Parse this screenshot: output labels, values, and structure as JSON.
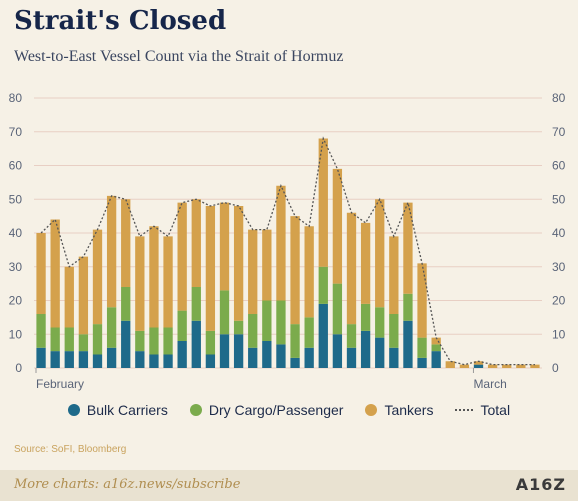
{
  "header": {
    "title": "Strait's Closed",
    "subtitle": "West-to-East Vessel Count via the Strait of Hormuz"
  },
  "legend": {
    "bulk": "Bulk Carriers",
    "dry": "Dry Cargo/Passenger",
    "tankers": "Tankers",
    "total": "Total"
  },
  "source": "Source: SoFI, Bloomberg",
  "footer": {
    "text": "More charts: a16z.news/subscribe",
    "logo": "A16Z"
  },
  "colors": {
    "bulk": "#1e6a8a",
    "dry": "#7bab4c",
    "tankers": "#d4a14c",
    "total": "#555555",
    "grid": "#e8cfc4",
    "axis_text": "#5a6478"
  },
  "chart_data": {
    "type": "bar",
    "stacked": true,
    "ylim": [
      0,
      80
    ],
    "yticks": [
      0,
      10,
      20,
      30,
      40,
      50,
      60,
      70,
      80
    ],
    "y_axis_both_sides": true,
    "grid": true,
    "legend_position": "bottom",
    "x_tick_labels": [
      {
        "label": "February",
        "index": 0
      },
      {
        "label": "March",
        "index": 31
      }
    ],
    "series": [
      {
        "name": "Bulk Carriers",
        "values": [
          6,
          5,
          5,
          5,
          4,
          6,
          14,
          5,
          4,
          4,
          8,
          14,
          4,
          10,
          10,
          6,
          8,
          7,
          3,
          6,
          19,
          10,
          6,
          11,
          9,
          6,
          14,
          3,
          5,
          0,
          0,
          1,
          0,
          0,
          0,
          0
        ]
      },
      {
        "name": "Dry Cargo/Passenger",
        "values": [
          10,
          7,
          7,
          5,
          9,
          12,
          10,
          6,
          8,
          8,
          9,
          10,
          7,
          13,
          4,
          10,
          12,
          13,
          10,
          9,
          11,
          15,
          7,
          8,
          9,
          10,
          8,
          6,
          2,
          0,
          0,
          0,
          0,
          0,
          0,
          0
        ]
      },
      {
        "name": "Tankers",
        "values": [
          24,
          32,
          18,
          23,
          28,
          33,
          26,
          28,
          30,
          27,
          32,
          26,
          37,
          26,
          34,
          25,
          21,
          34,
          32,
          27,
          38,
          34,
          33,
          24,
          32,
          23,
          27,
          22,
          2,
          2,
          1,
          1,
          1,
          1,
          1,
          1
        ]
      }
    ],
    "total": [
      40,
      44,
      30,
      33,
      41,
      51,
      50,
      39,
      42,
      39,
      49,
      50,
      48,
      49,
      48,
      41,
      41,
      54,
      45,
      42,
      68,
      59,
      46,
      43,
      50,
      39,
      49,
      31,
      9,
      2,
      1,
      2,
      1,
      1,
      1,
      1
    ]
  }
}
